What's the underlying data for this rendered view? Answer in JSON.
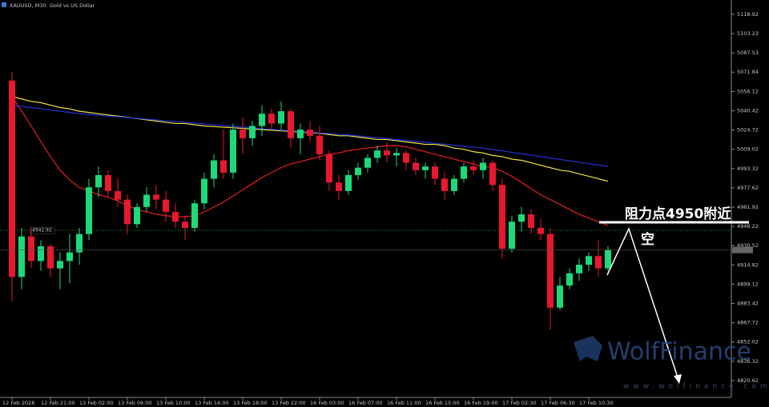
{
  "chart_data": {
    "type": "candlestick",
    "title": "XAUUSD, M30:  Gold vs US Dollar",
    "categories": [
      "12 Feb 2026",
      null,
      null,
      null,
      "12 Feb 21:00",
      null,
      null,
      null,
      "13 Feb 02:00",
      null,
      null,
      null,
      "13 Feb 06:00",
      null,
      null,
      null,
      "13 Feb 10:00",
      null,
      null,
      null,
      "13 Feb 14:00",
      null,
      null,
      null,
      "13 Feb 18:00",
      null,
      null,
      null,
      "13 Feb 22:00",
      null,
      null,
      null,
      "16 Feb 03:00",
      null,
      null,
      null,
      "16 Feb 07:00",
      null,
      null,
      null,
      "16 Feb 11:00",
      null,
      null,
      null,
      "16 Feb 15:00",
      null,
      null,
      null,
      "16 Feb 19:00",
      null,
      null,
      null,
      "17 Feb 02:30",
      null,
      null,
      null,
      "17 Feb 06:30",
      null,
      null,
      null,
      "17 Feb 10:30",
      null,
      null
    ],
    "open": [
      5065,
      4905,
      4938,
      4918,
      4930,
      4912,
      4918,
      4925,
      4940,
      4978,
      4988,
      4975,
      4968,
      4948,
      4962,
      4972,
      4968,
      4958,
      4950,
      4945,
      4965,
      4985,
      5000,
      4990,
      5025,
      5018,
      5028,
      5038,
      5030,
      5040,
      5018,
      5025,
      5020,
      5005,
      4982,
      4975,
      4988,
      4994,
      5002,
      5008,
      5004,
      5006,
      4998,
      4992,
      4995,
      4985,
      4975,
      4985,
      4995,
      4992,
      4998,
      4980,
      4928,
      4950,
      4956,
      4945,
      4940,
      4880,
      4898,
      4908,
      4915,
      4922,
      4912
    ],
    "high": [
      5072,
      4945,
      4945,
      4935,
      4932,
      4925,
      4940,
      4945,
      4985,
      4995,
      4992,
      4985,
      4972,
      4965,
      4978,
      4980,
      4975,
      4965,
      4955,
      4968,
      4990,
      5005,
      5025,
      5030,
      5035,
      5032,
      5045,
      5042,
      5048,
      5042,
      5030,
      5032,
      5028,
      5008,
      4988,
      4992,
      4998,
      5005,
      5012,
      5015,
      5010,
      5008,
      5002,
      4998,
      4998,
      4990,
      4988,
      4998,
      5000,
      5002,
      5000,
      4985,
      4955,
      4962,
      4960,
      4952,
      4945,
      4905,
      4912,
      4920,
      4925,
      4935,
      4930
    ],
    "low": [
      4885,
      4895,
      4912,
      4910,
      4905,
      4895,
      4900,
      4915,
      4935,
      4970,
      4970,
      4962,
      4940,
      4945,
      4958,
      4960,
      4950,
      4945,
      4935,
      4942,
      4960,
      4978,
      4985,
      4985,
      5005,
      5012,
      5020,
      5025,
      5025,
      5010,
      5005,
      5015,
      5000,
      4975,
      4968,
      4972,
      4984,
      4990,
      4998,
      4998,
      4995,
      4992,
      4988,
      4985,
      4980,
      4968,
      4972,
      4982,
      4988,
      4985,
      4975,
      4920,
      4925,
      4942,
      4940,
      4935,
      4862,
      4878,
      4895,
      4902,
      4910,
      4905,
      4910
    ],
    "close": [
      4905,
      4938,
      4918,
      4930,
      4912,
      4918,
      4925,
      4940,
      4978,
      4988,
      4975,
      4968,
      4948,
      4962,
      4972,
      4968,
      4958,
      4950,
      4945,
      4965,
      4985,
      5000,
      4990,
      5025,
      5018,
      5028,
      5038,
      5030,
      5040,
      5018,
      5025,
      5020,
      5005,
      4982,
      4975,
      4988,
      4994,
      5002,
      5008,
      5004,
      5006,
      4998,
      4992,
      4995,
      4985,
      4975,
      4985,
      4995,
      4992,
      4998,
      4980,
      4928,
      4950,
      4956,
      4945,
      4940,
      4880,
      4898,
      4908,
      4915,
      4922,
      4912,
      4927
    ],
    "up_color": "#1ed97a",
    "down_color": "#e8182e",
    "series": [
      {
        "color": "#e5201f",
        "values": [
          5052,
          5040,
          5028,
          5015,
          5003,
          4992,
          4984,
          4978,
          4975,
          4972,
          4970,
          4967,
          4963,
          4960,
          4958,
          4956,
          4955,
          4954,
          4954,
          4955,
          4958,
          4962,
          4966,
          4971,
          4976,
          4981,
          4986,
          4990,
          4994,
          4997,
          4999,
          5001,
          5003,
          5005,
          5006,
          5008,
          5009,
          5010,
          5011,
          5012,
          5012,
          5011,
          5009,
          5007,
          5005,
          5003,
          5001,
          4999,
          4997,
          4995,
          4994,
          4991,
          4987,
          4982,
          4977,
          4972,
          4968,
          4964,
          4960,
          4956,
          4953,
          4950,
          4947
        ]
      },
      {
        "color": "#f2e23a",
        "values": [
          5052,
          5050,
          5048,
          5047,
          5045,
          5043,
          5042,
          5040,
          5039,
          5038,
          5037,
          5036,
          5035,
          5034,
          5033,
          5032,
          5031,
          5030,
          5030,
          5029,
          5028,
          5027.5,
          5027,
          5026.5,
          5026,
          5025.5,
          5025,
          5024.5,
          5024,
          5023.5,
          5023,
          5022.5,
          5022,
          5021,
          5020,
          5020,
          5019,
          5018,
          5017,
          5017,
          5016,
          5015,
          5014,
          5013,
          5013,
          5012,
          5010,
          5009,
          5007,
          5006,
          5004,
          5003,
          5001,
          5000,
          4998,
          4996,
          4994,
          4992,
          4991,
          4989,
          4987,
          4985,
          4983
        ]
      },
      {
        "color": "#2233d8",
        "values": [
          5045,
          5044,
          5043,
          5042,
          5041,
          5040,
          5039,
          5038,
          5037.4,
          5036.8,
          5036.1,
          5035.5,
          5034.8,
          5034.2,
          5033.5,
          5032.9,
          5032.2,
          5031.6,
          5030.9,
          5030.3,
          5029.6,
          5029,
          5028.3,
          5027.6,
          5027,
          5026.4,
          5025.8,
          5025.3,
          5024.7,
          5024.1,
          5023.5,
          5022.9,
          5022.3,
          5021.8,
          5021.2,
          5020.6,
          5020,
          5019.2,
          5018.5,
          5017.7,
          5016.9,
          5016.2,
          5015.4,
          5014.6,
          5013.8,
          5013.1,
          5012.3,
          5011.5,
          5010.8,
          5010,
          5008.8,
          5007.7,
          5006.5,
          5005.4,
          5004.2,
          5003.1,
          5001.9,
          5000.8,
          4999.6,
          4998.5,
          4997.3,
          4996.2,
          4995
        ]
      }
    ],
    "order_line": 4942.92,
    "ylim": [
      4806.9,
      5130.6
    ],
    "yticks": [
      5118.92,
      5103.23,
      5087.53,
      5071.84,
      5056.12,
      5040.42,
      5024.72,
      5009.02,
      4993.32,
      4977.62,
      4961.92,
      4946.22,
      4930.52,
      4914.82,
      4899.12,
      4883.42,
      4867.72,
      4852.02,
      4836.32,
      4820.62
    ],
    "annotations": [
      "阻力点4950附近",
      "空"
    ],
    "watermark": "WolfFinance",
    "watermark_url": "www.wolfinance.com"
  }
}
